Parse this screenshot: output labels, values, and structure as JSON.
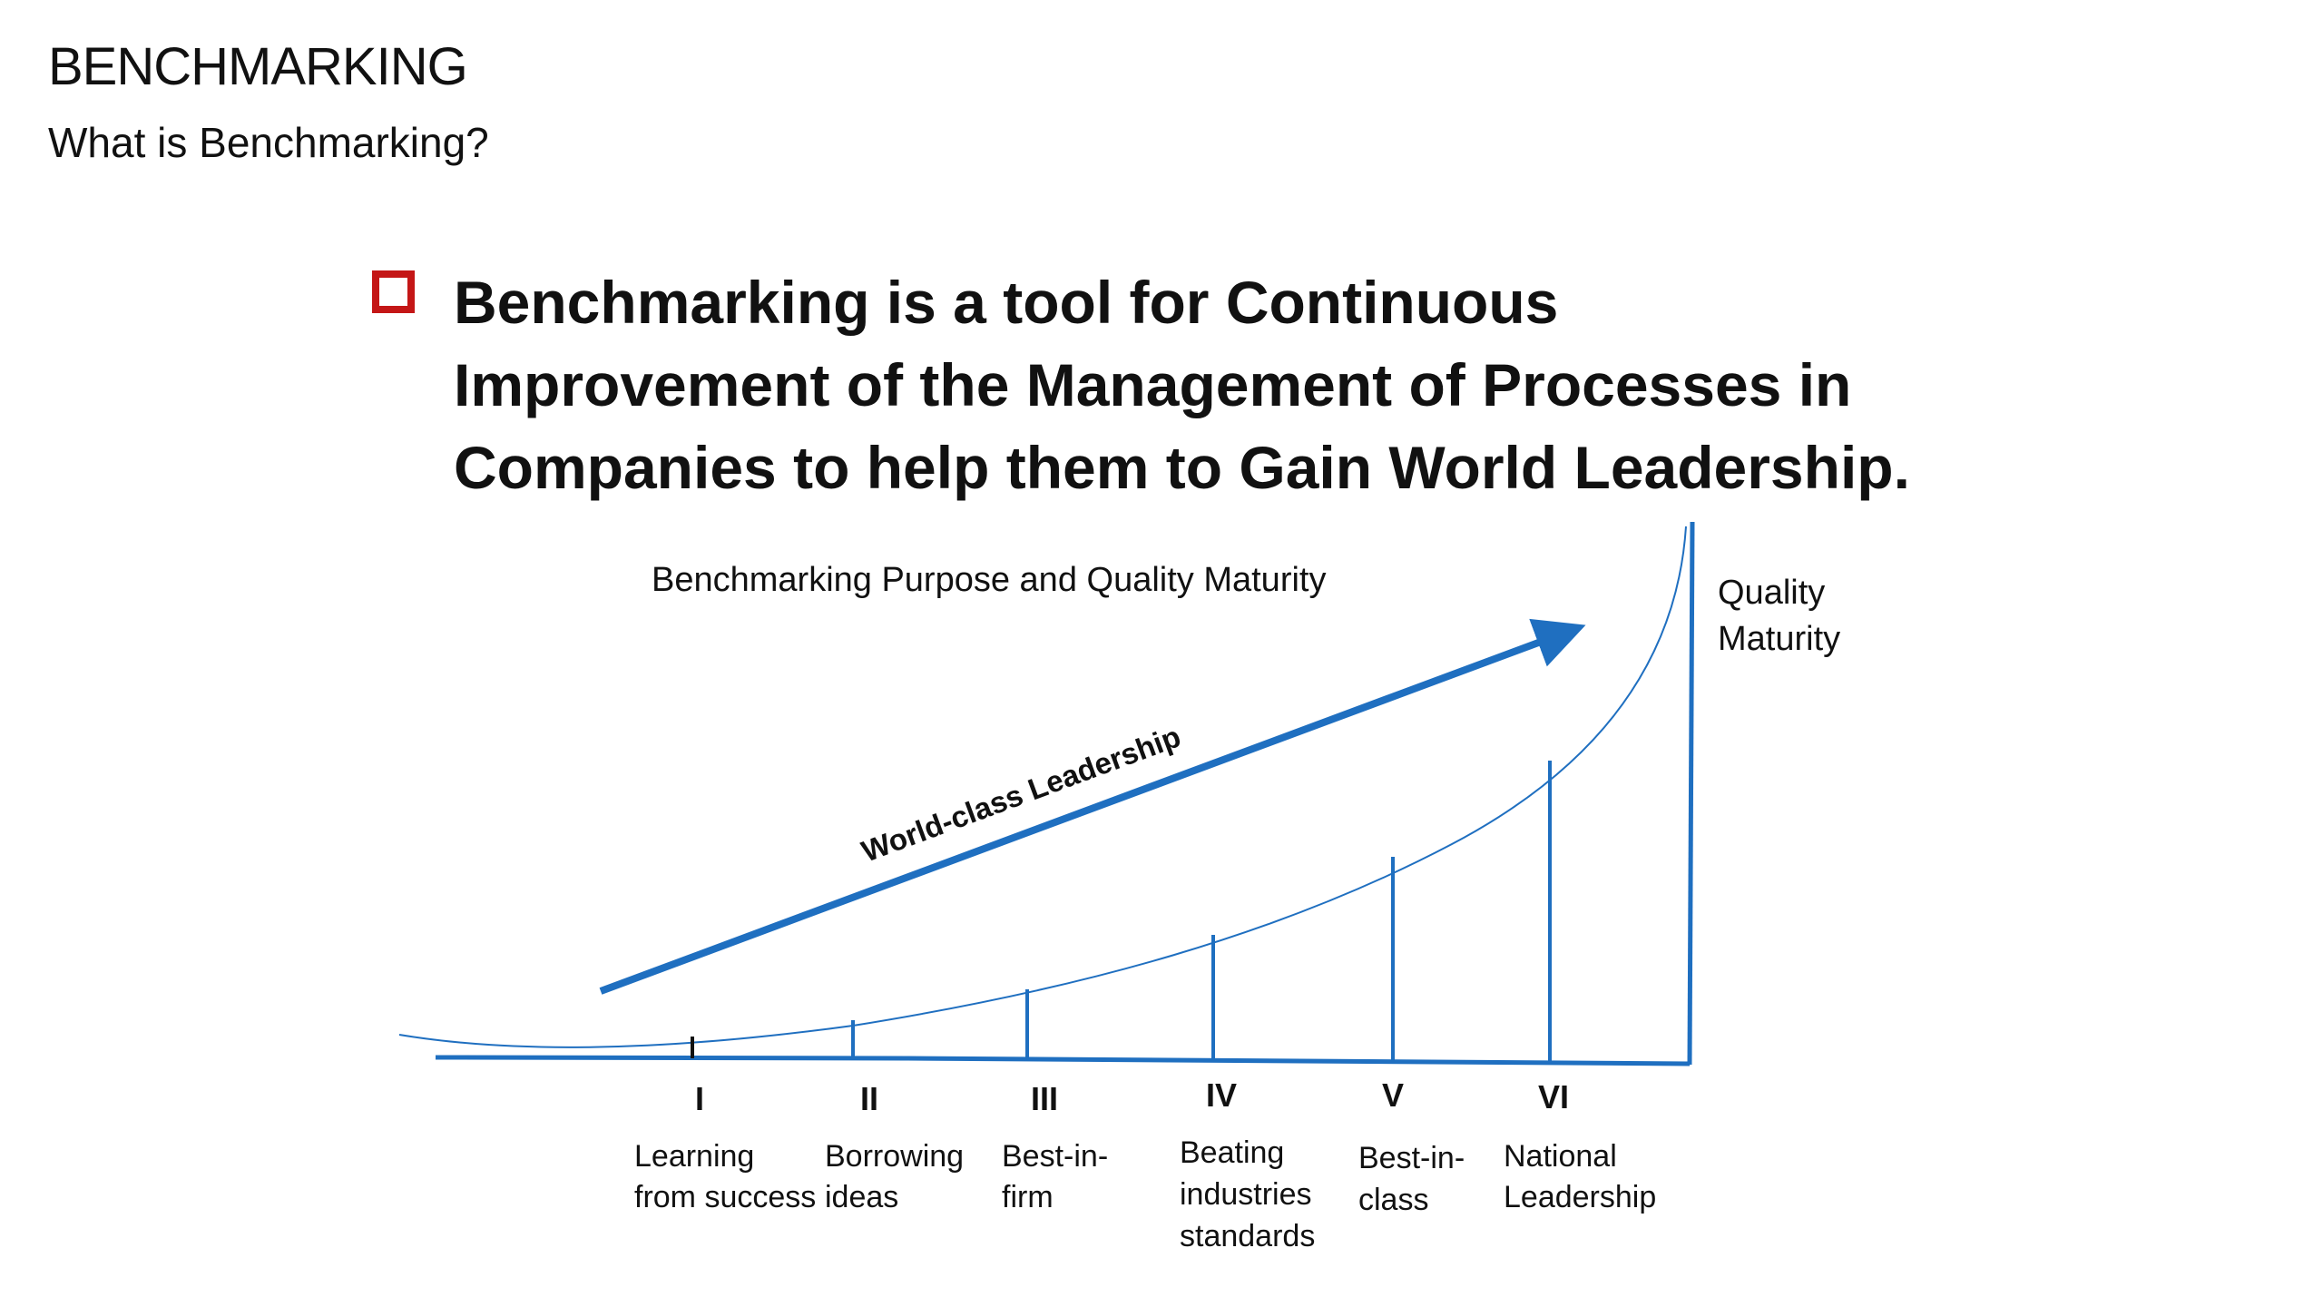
{
  "header": {
    "title": "BENCHMARKING",
    "subtitle": "What is Benchmarking?"
  },
  "statement": {
    "lines": [
      "Benchmarking is a tool for Continuous",
      "Improvement of the Management of Processes in",
      "Companies to help them to Gain World Leadership."
    ]
  },
  "diagram": {
    "title": "Benchmarking Purpose and Quality Maturity",
    "y_axis_label": [
      "Quality",
      "Maturity"
    ],
    "arrow_label": "World-class Leadership",
    "stages": [
      {
        "numeral": "I",
        "label": [
          "Learning",
          "from success"
        ]
      },
      {
        "numeral": "II",
        "label": [
          "Borrowing",
          "ideas"
        ]
      },
      {
        "numeral": "III",
        "label": [
          "Best-in-",
          "firm"
        ]
      },
      {
        "numeral": "IV",
        "label": [
          "Beating",
          "industries",
          "standards"
        ]
      },
      {
        "numeral": "V",
        "label": [
          "Best-in-",
          "class"
        ]
      },
      {
        "numeral": "VI",
        "label": [
          "National",
          "Leadership"
        ]
      }
    ],
    "colors": {
      "accent_blue": "#1f6fc0",
      "checkbox_red": "#c41616"
    }
  }
}
